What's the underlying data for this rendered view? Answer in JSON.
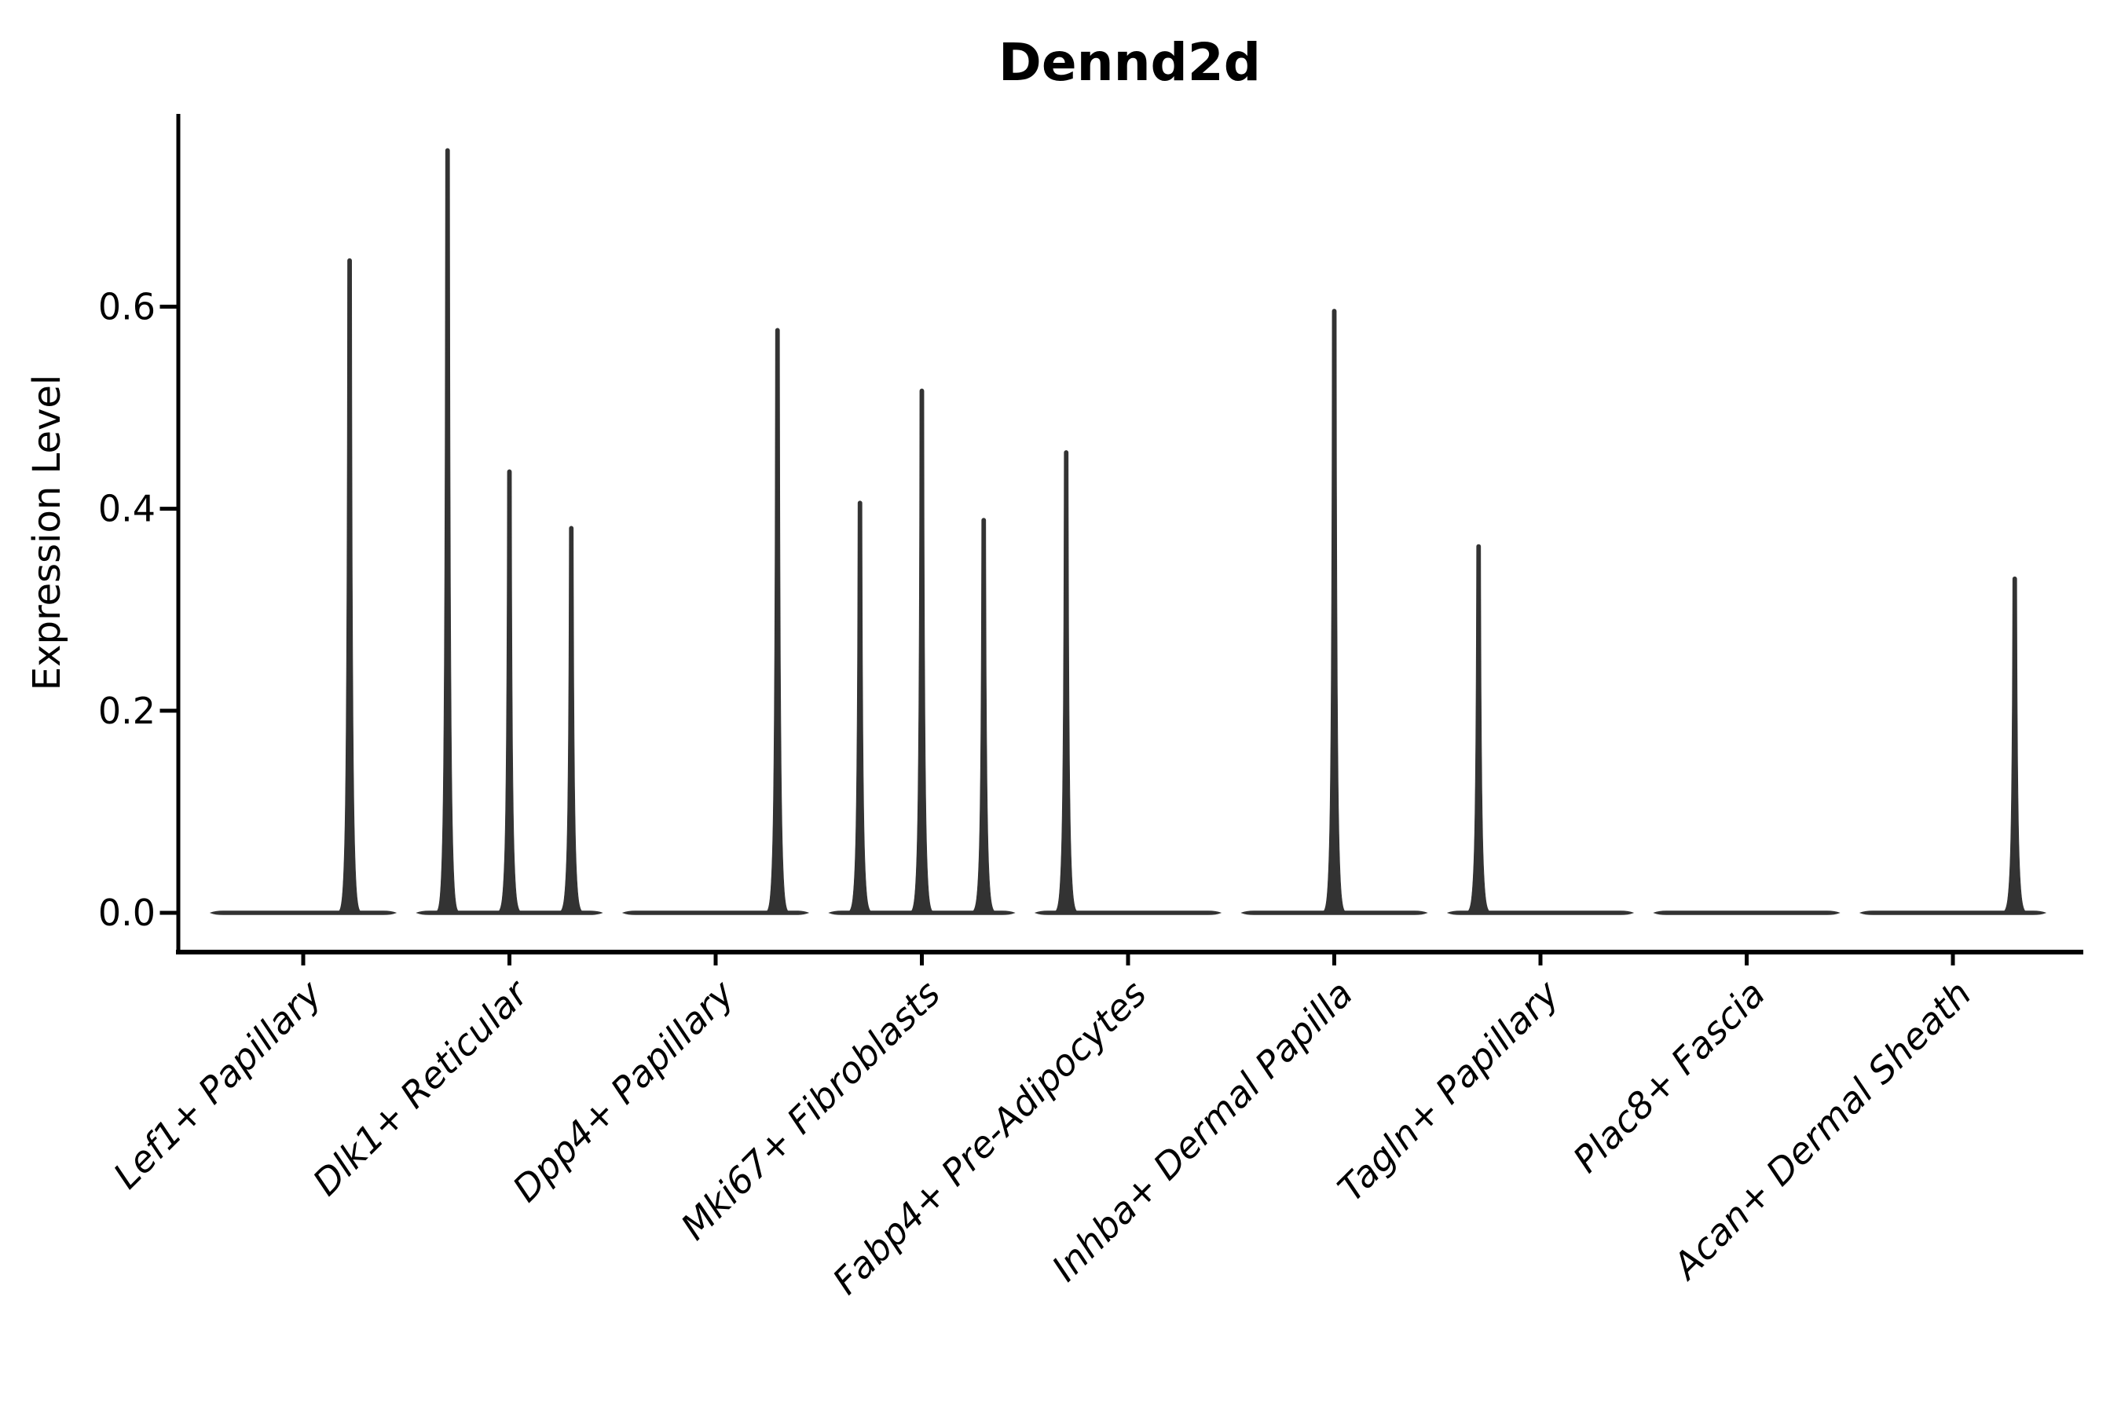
{
  "title": "Dennd2d",
  "axes": {
    "ylabel": "Expression Level",
    "ytick_labels": [
      "0.0",
      "0.2",
      "0.4",
      "0.6"
    ]
  },
  "chart_data": {
    "type": "violin",
    "title": "Dennd2d",
    "xlabel": "",
    "ylabel": "Expression Level",
    "ylim": [
      -0.04,
      0.79
    ],
    "yticks": [
      0.0,
      0.2,
      0.4,
      0.6
    ],
    "ytick_labels": [
      "0.0",
      "0.2",
      "0.4",
      "0.6"
    ],
    "grid": false,
    "legend": "none",
    "categories": [
      "Lef1+ Papillary",
      "Dlk1+ Reticular",
      "Dpp4+ Papillary",
      "Mki67+ Fibroblasts",
      "Fabp4+ Pre-Adipocytes",
      "Inhba+ Dermal Papilla",
      "Tagln+ Papillary",
      "Plac8+ Fascia",
      "Acan+ Dermal Sheath"
    ],
    "description": "Violin plot of Dennd2d expression per fibroblast subtype; distributions are concentrated at 0 (flat bases) with thin density spikes rising to the maximum expression of sub-groups dodged within each category.",
    "baseline_value": 0.0,
    "base_halfwidth_frac": 0.45,
    "violins": [
      {
        "category": "Lef1+ Papillary",
        "spikes": [
          {
            "offset_frac": 0.225,
            "peak": 0.648
          }
        ]
      },
      {
        "category": "Dlk1+ Reticular",
        "spikes": [
          {
            "offset_frac": -0.3,
            "peak": 0.757
          },
          {
            "offset_frac": 0.0,
            "peak": 0.439
          },
          {
            "offset_frac": 0.3,
            "peak": 0.383
          }
        ]
      },
      {
        "category": "Dpp4+ Papillary",
        "spikes": [
          {
            "offset_frac": 0.3,
            "peak": 0.579
          }
        ]
      },
      {
        "category": "Mki67+ Fibroblasts",
        "spikes": [
          {
            "offset_frac": -0.3,
            "peak": 0.408
          },
          {
            "offset_frac": 0.0,
            "peak": 0.519
          },
          {
            "offset_frac": 0.3,
            "peak": 0.391
          }
        ]
      },
      {
        "category": "Fabp4+ Pre-Adipocytes",
        "spikes": [
          {
            "offset_frac": -0.3,
            "peak": 0.458
          }
        ]
      },
      {
        "category": "Inhba+ Dermal Papilla",
        "spikes": [
          {
            "offset_frac": 0.0,
            "peak": 0.598
          }
        ]
      },
      {
        "category": "Tagln+ Papillary",
        "spikes": [
          {
            "offset_frac": -0.3,
            "peak": 0.365
          }
        ]
      },
      {
        "category": "Plac8+ Fascia",
        "spikes": []
      },
      {
        "category": "Acan+ Dermal Sheath",
        "spikes": [
          {
            "offset_frac": 0.3,
            "peak": 0.333
          }
        ]
      }
    ],
    "style": {
      "violin_color": "#333333",
      "axis_color": "#000000",
      "background": "#ffffff",
      "x_label_rotation_deg": 45,
      "x_label_style": "italic"
    }
  }
}
